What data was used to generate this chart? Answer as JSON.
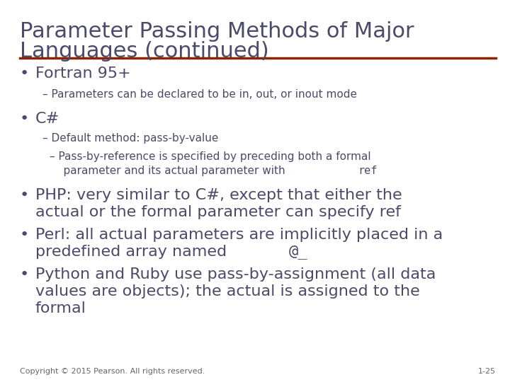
{
  "title_line1": "Parameter Passing Methods of Major",
  "title_line2": "Languages (continued)",
  "title_color": "#4a4a6a",
  "title_fontsize": 22,
  "rule_color": "#8B2500",
  "bg_color": "#ffffff",
  "footer_left": "Copyright © 2015 Pearson. All rights reserved.",
  "footer_right": "1-25",
  "footer_color": "#666666",
  "footer_fontsize": 8,
  "bullet_color": "#4a4a6a",
  "b1_fontsize": 16,
  "b2_fontsize": 11,
  "b3_fontsize": 11,
  "bullet_char": "•",
  "dash": "–"
}
